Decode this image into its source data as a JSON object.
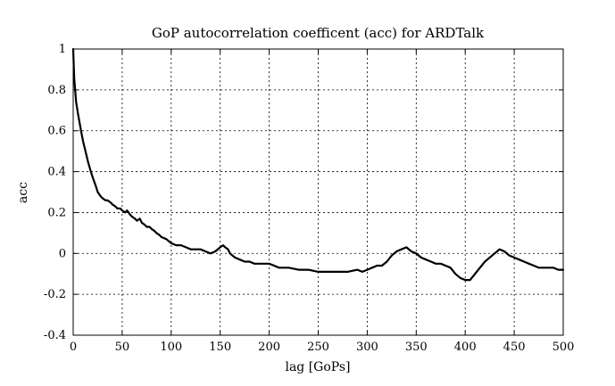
{
  "chart_data": {
    "type": "line",
    "title": "GoP autocorrelation coefficent (acc) for ARDTalk",
    "xlabel": "lag [GoPs]",
    "ylabel": "acc",
    "xlim": [
      0,
      500
    ],
    "ylim": [
      -0.4,
      1
    ],
    "xticks": [
      0,
      50,
      100,
      150,
      200,
      250,
      300,
      350,
      400,
      450,
      500
    ],
    "yticks": [
      -0.4,
      -0.2,
      0,
      0.2,
      0.4,
      0.6,
      0.8,
      1
    ],
    "xtick_labels": [
      "0",
      "50",
      "100",
      "150",
      "200",
      "250",
      "300",
      "350",
      "400",
      "450",
      "500"
    ],
    "ytick_labels": [
      "-0.4",
      "-0.2",
      "0",
      "0.2",
      "0.4",
      "0.6",
      "0.8",
      "1"
    ],
    "grid": true,
    "series": [
      {
        "x": [
          0,
          1,
          2,
          3,
          5,
          8,
          10,
          13,
          15,
          18,
          20,
          23,
          25,
          28,
          30,
          33,
          35,
          38,
          40,
          43,
          45,
          48,
          50,
          53,
          55,
          58,
          60,
          63,
          65,
          68,
          70,
          73,
          75,
          78,
          80,
          83,
          85,
          88,
          90,
          95,
          100,
          105,
          110,
          115,
          120,
          125,
          130,
          135,
          140,
          145,
          150,
          153,
          155,
          158,
          160,
          165,
          170,
          175,
          180,
          185,
          190,
          195,
          200,
          205,
          210,
          220,
          230,
          240,
          250,
          260,
          270,
          280,
          290,
          295,
          300,
          305,
          310,
          315,
          320,
          325,
          330,
          335,
          340,
          345,
          350,
          355,
          360,
          365,
          370,
          375,
          380,
          385,
          390,
          395,
          400,
          405,
          410,
          415,
          420,
          425,
          430,
          435,
          440,
          445,
          450,
          455,
          460,
          465,
          470,
          475,
          480,
          485,
          490,
          495,
          500
        ],
        "y": [
          1.0,
          0.86,
          0.8,
          0.74,
          0.68,
          0.6,
          0.55,
          0.49,
          0.45,
          0.4,
          0.37,
          0.33,
          0.3,
          0.28,
          0.27,
          0.26,
          0.26,
          0.25,
          0.24,
          0.23,
          0.22,
          0.22,
          0.21,
          0.2,
          0.21,
          0.19,
          0.18,
          0.17,
          0.16,
          0.17,
          0.15,
          0.14,
          0.13,
          0.13,
          0.12,
          0.11,
          0.1,
          0.09,
          0.08,
          0.07,
          0.05,
          0.04,
          0.04,
          0.03,
          0.02,
          0.02,
          0.02,
          0.01,
          0.0,
          0.01,
          0.03,
          0.04,
          0.03,
          0.02,
          0.0,
          -0.02,
          -0.03,
          -0.04,
          -0.04,
          -0.05,
          -0.05,
          -0.05,
          -0.05,
          -0.06,
          -0.07,
          -0.07,
          -0.08,
          -0.08,
          -0.09,
          -0.09,
          -0.09,
          -0.09,
          -0.08,
          -0.09,
          -0.08,
          -0.07,
          -0.06,
          -0.06,
          -0.04,
          -0.01,
          0.01,
          0.02,
          0.03,
          0.01,
          0.0,
          -0.02,
          -0.03,
          -0.04,
          -0.05,
          -0.05,
          -0.06,
          -0.07,
          -0.1,
          -0.12,
          -0.13,
          -0.13,
          -0.1,
          -0.07,
          -0.04,
          -0.02,
          0.0,
          0.02,
          0.01,
          -0.01,
          -0.02,
          -0.03,
          -0.04,
          -0.05,
          -0.06,
          -0.07,
          -0.07,
          -0.07,
          -0.07,
          -0.08,
          -0.08
        ]
      }
    ]
  }
}
